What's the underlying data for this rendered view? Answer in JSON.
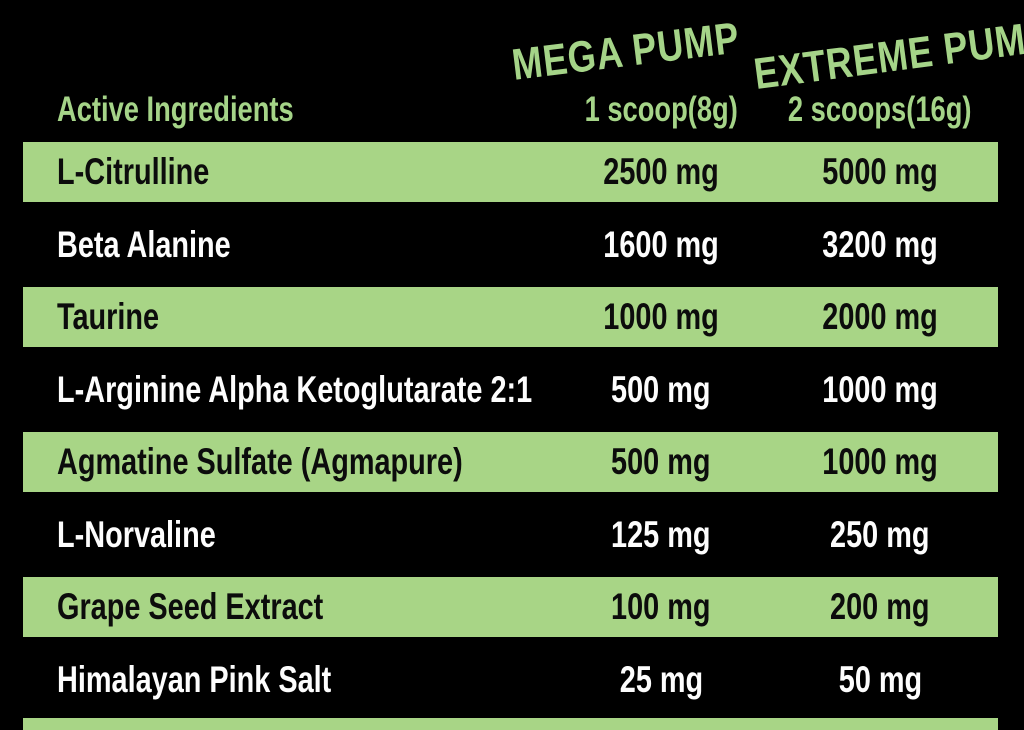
{
  "header": {
    "col1_label": "Active Ingredients",
    "product1": {
      "name": "MEGA PUMP",
      "serving": "1 scoop(8g)"
    },
    "product2": {
      "name": "EXTREME PUMP",
      "serving": "2 scoops(16g)"
    }
  },
  "table": {
    "rows": [
      {
        "ingredient": "L-Citrulline",
        "mega_pump": "2500 mg",
        "extreme_pump": "5000 mg"
      },
      {
        "ingredient": "Beta Alanine",
        "mega_pump": "1600 mg",
        "extreme_pump": "3200 mg"
      },
      {
        "ingredient": "Taurine",
        "mega_pump": "1000 mg",
        "extreme_pump": "2000 mg"
      },
      {
        "ingredient": "L-Arginine Alpha Ketoglutarate 2:1",
        "mega_pump": "500 mg",
        "extreme_pump": "1000 mg"
      },
      {
        "ingredient": "Agmatine Sulfate (Agmapure)",
        "mega_pump": "500 mg",
        "extreme_pump": "1000 mg"
      },
      {
        "ingredient": "L-Norvaline",
        "mega_pump": "125 mg",
        "extreme_pump": "250 mg"
      },
      {
        "ingredient": "Grape Seed Extract",
        "mega_pump": "100 mg",
        "extreme_pump": "200 mg"
      },
      {
        "ingredient": "Himalayan Pink Salt",
        "mega_pump": "25 mg",
        "extreme_pump": "50 mg"
      }
    ]
  },
  "colors": {
    "green": "#a8d586",
    "header-green": "#a5d488",
    "dark-text": "#0c0c0c",
    "light-text": "#fdfdfd",
    "bg": "#000000"
  }
}
